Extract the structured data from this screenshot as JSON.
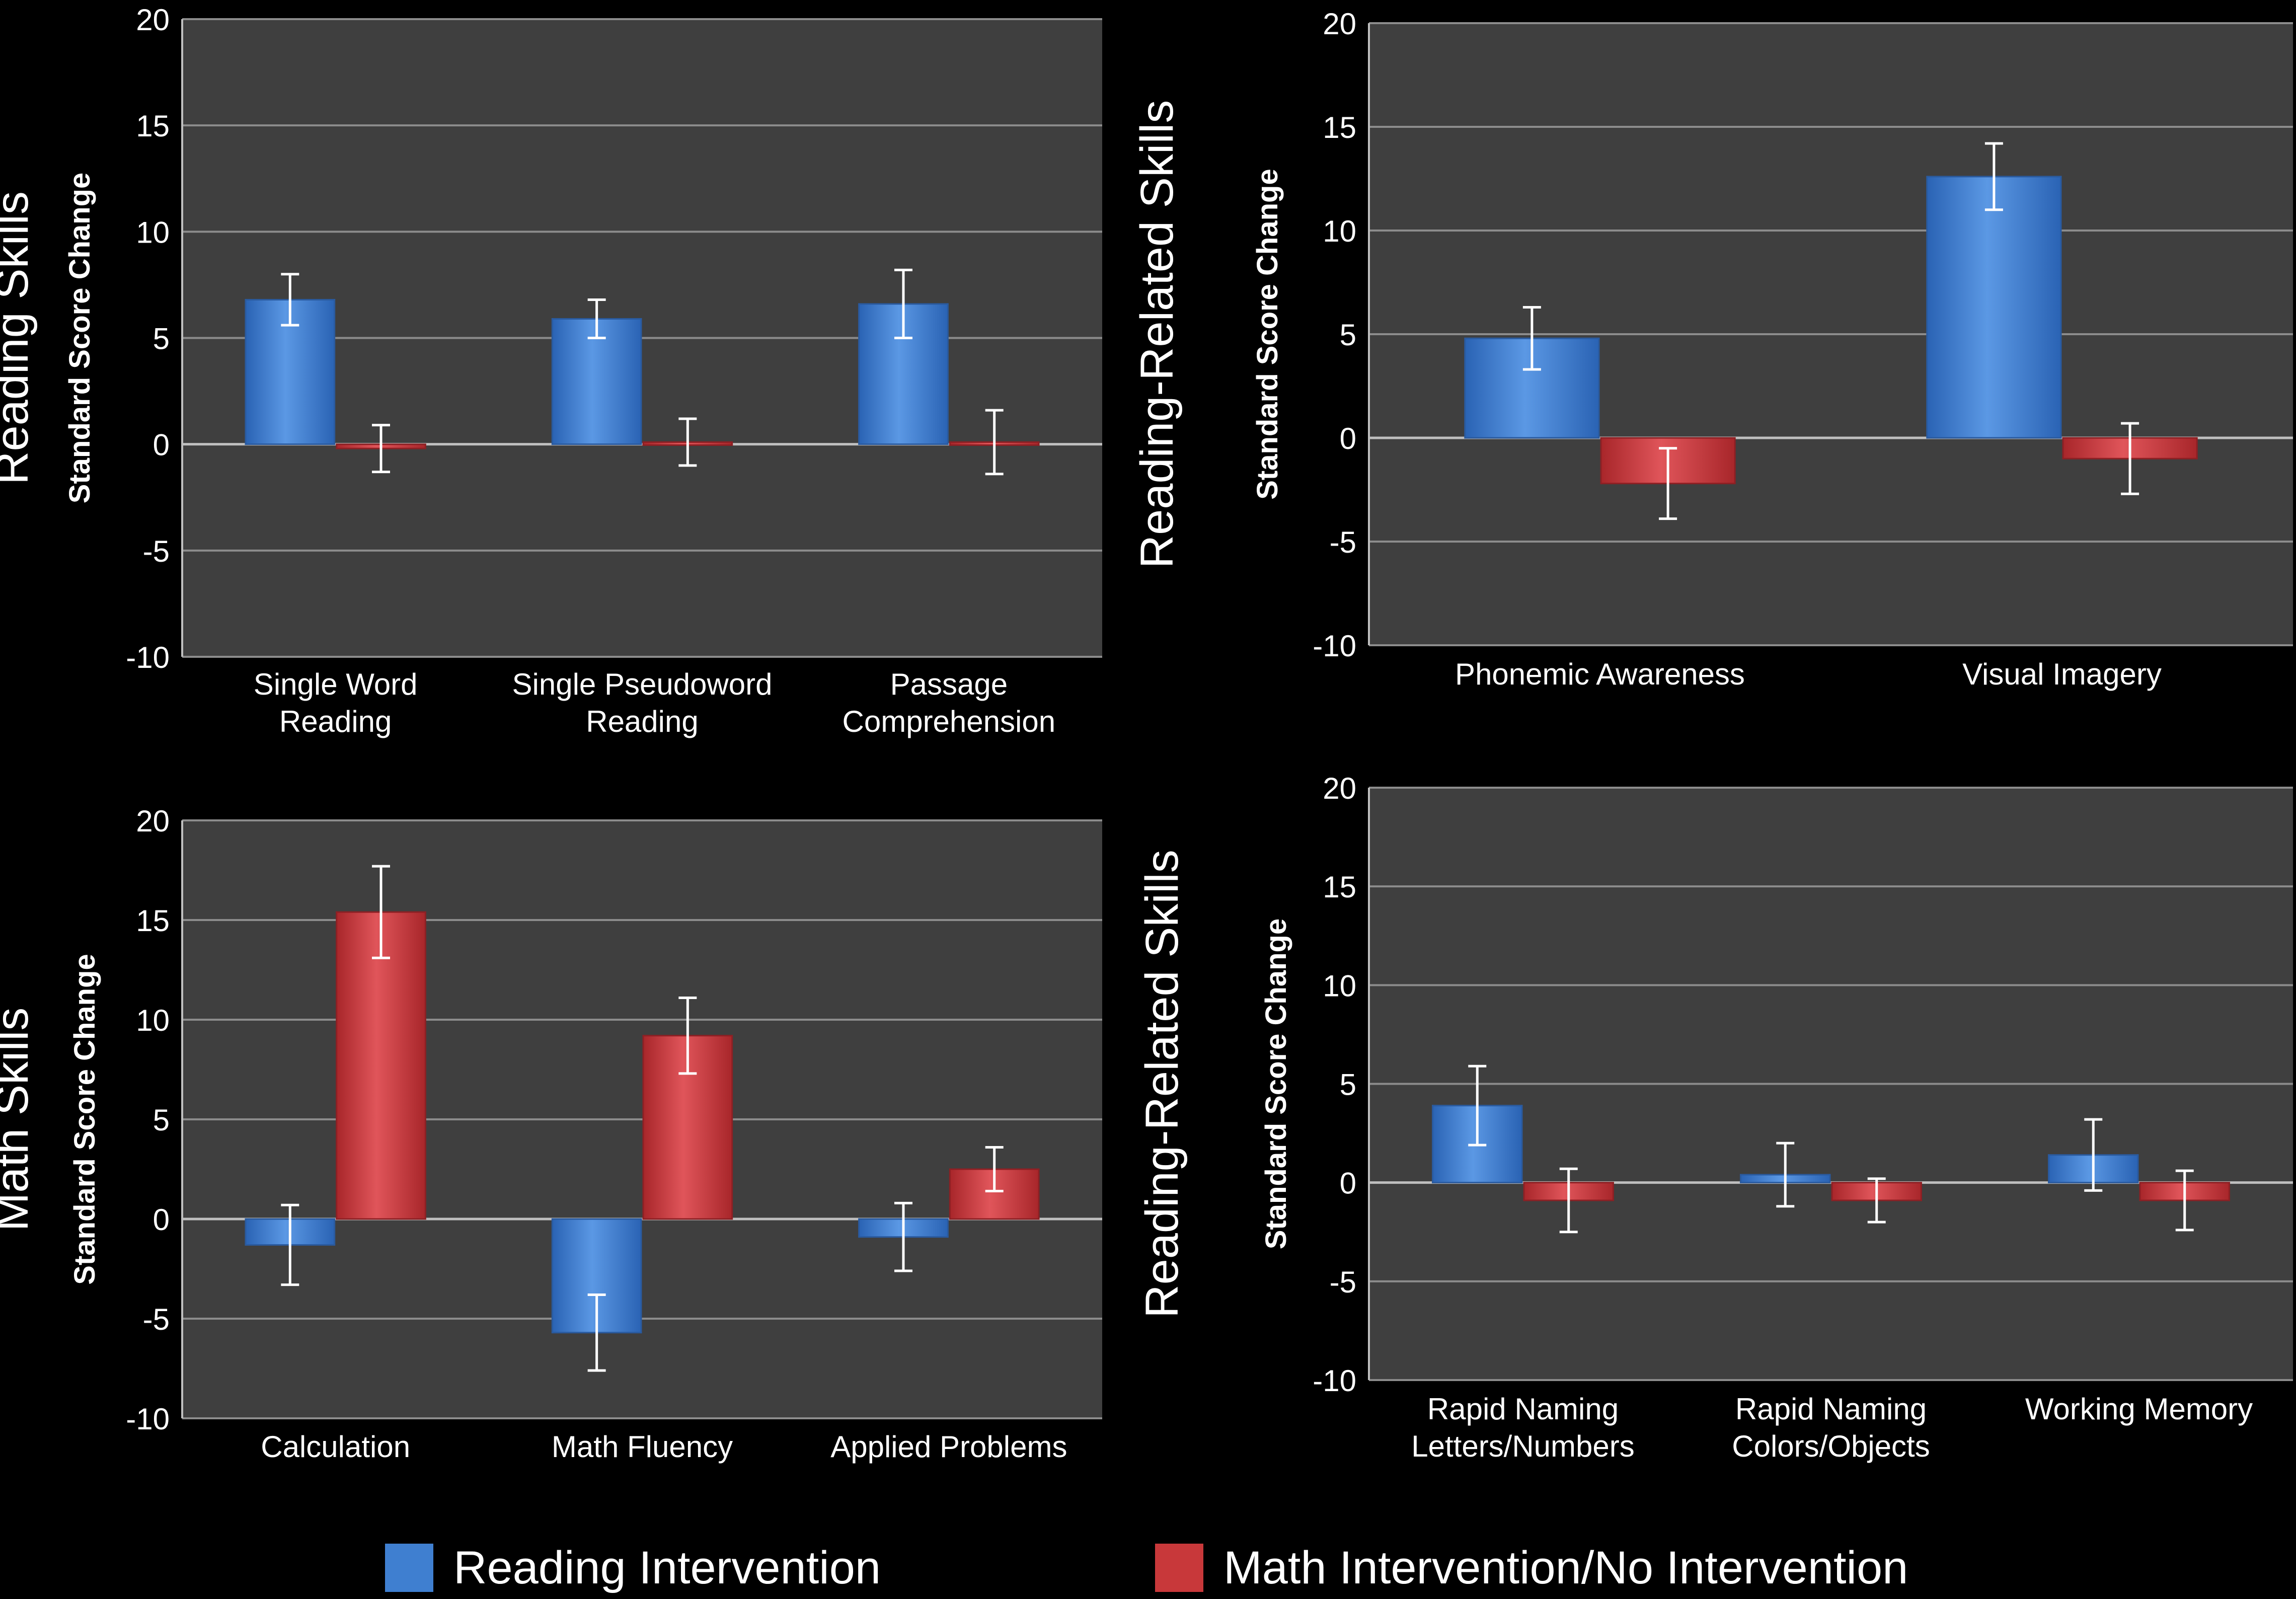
{
  "colors": {
    "reading": "#3f7fd0",
    "math": "#c8383a",
    "plot_bg": "#3f3f3f",
    "grid": "#8c8c8c",
    "text": "#ffffff",
    "error": "#ffffff"
  },
  "legend": {
    "reading_label": "Reading Intervention",
    "math_label": "Math Intervention/No Intervention"
  },
  "chart_data": [
    {
      "id": "reading-skills",
      "type": "bar",
      "title": "Reading Skills",
      "ylabel": "Standard Score Change",
      "ylim": [
        -10,
        20
      ],
      "yticks": [
        20,
        15,
        10,
        5,
        0,
        -5,
        -10
      ],
      "categories": [
        [
          "Single Word",
          "Reading"
        ],
        [
          "Single Pseudoword",
          "Reading"
        ],
        [
          "Passage",
          "Comprehension"
        ]
      ],
      "series": [
        {
          "name": "Reading Intervention",
          "values": [
            6.8,
            5.9,
            6.6
          ],
          "errors": [
            1.2,
            0.9,
            1.6
          ]
        },
        {
          "name": "Math Intervention/No Intervention",
          "values": [
            -0.2,
            0.1,
            0.1
          ],
          "errors": [
            1.1,
            1.1,
            1.5
          ]
        }
      ]
    },
    {
      "id": "reading-related-1",
      "type": "bar",
      "title": "Reading-Related Skills",
      "ylabel": "Standard Score Change",
      "ylim": [
        -10,
        20
      ],
      "yticks": [
        20,
        15,
        10,
        5,
        0,
        -5,
        -10
      ],
      "categories": [
        [
          "Phonemic Awareness"
        ],
        [
          "Visual Imagery"
        ]
      ],
      "series": [
        {
          "name": "Reading Intervention",
          "values": [
            4.8,
            12.6
          ],
          "errors": [
            1.5,
            1.6
          ]
        },
        {
          "name": "Math Intervention/No Intervention",
          "values": [
            -2.2,
            -1.0
          ],
          "errors": [
            1.7,
            1.7
          ]
        }
      ]
    },
    {
      "id": "math-skills",
      "type": "bar",
      "title": "Math Skills",
      "ylabel": "Standard Score Change",
      "ylim": [
        -10,
        20
      ],
      "yticks": [
        20,
        15,
        10,
        5,
        0,
        -5,
        -10
      ],
      "categories": [
        [
          "Calculation"
        ],
        [
          "Math Fluency"
        ],
        [
          "Applied Problems"
        ]
      ],
      "series": [
        {
          "name": "Reading Intervention",
          "values": [
            -1.3,
            -5.7,
            -0.9
          ],
          "errors": [
            2.0,
            1.9,
            1.7
          ]
        },
        {
          "name": "Math Intervention/No Intervention",
          "values": [
            15.4,
            9.2,
            2.5
          ],
          "errors": [
            2.3,
            1.9,
            1.1
          ]
        }
      ]
    },
    {
      "id": "reading-related-2",
      "type": "bar",
      "title": "Reading-Related Skills",
      "ylabel": "Standard Score Change",
      "ylim": [
        -10,
        20
      ],
      "yticks": [
        20,
        15,
        10,
        5,
        0,
        -5,
        -10
      ],
      "categories": [
        [
          "Rapid Naming",
          "Letters/Numbers"
        ],
        [
          "Rapid Naming",
          "Colors/Objects"
        ],
        [
          "Working Memory"
        ]
      ],
      "series": [
        {
          "name": "Reading Intervention",
          "values": [
            3.9,
            0.4,
            1.4
          ],
          "errors": [
            2.0,
            1.6,
            1.8
          ]
        },
        {
          "name": "Math Intervention/No Intervention",
          "values": [
            -0.9,
            -0.9,
            -0.9
          ],
          "errors": [
            1.6,
            1.1,
            1.5
          ]
        }
      ]
    }
  ]
}
